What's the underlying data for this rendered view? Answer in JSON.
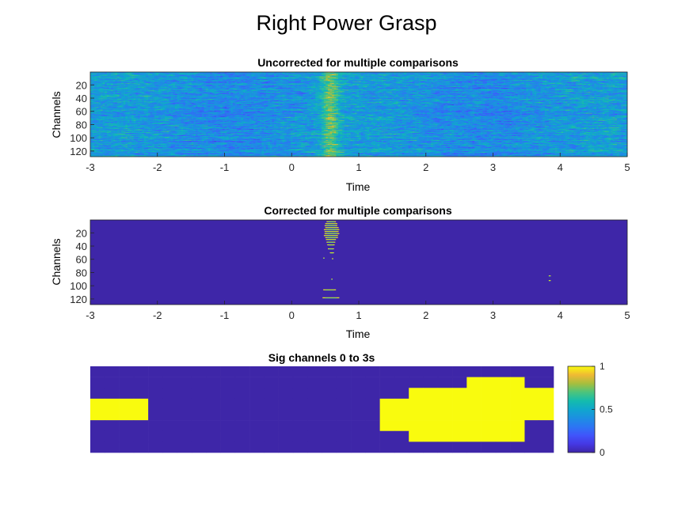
{
  "figure": {
    "title": "Right Power Grasp"
  },
  "colors": {
    "low": "#3e26a8",
    "high": "#f9fb0e"
  },
  "chart_data": [
    {
      "type": "heatmap",
      "title": "Uncorrected for multiple comparisons",
      "xlabel": "Time",
      "ylabel": "Channels",
      "xlim": [
        -3,
        5
      ],
      "ylim": [
        1,
        128
      ],
      "xticks": [
        "-3",
        "-2",
        "-1",
        "0",
        "1",
        "2",
        "3",
        "4",
        "5"
      ],
      "yticks": [
        "20",
        "40",
        "60",
        "80",
        "100",
        "120"
      ],
      "colormap": "parula",
      "description_values": "continuous values 0-1, noisy; elevated band around t=0.5-0.7 s across channels"
    },
    {
      "type": "heatmap",
      "title": "Corrected for multiple comparisons",
      "xlabel": "Time",
      "ylabel": "Channels",
      "xlim": [
        -3,
        5
      ],
      "ylim": [
        1,
        128
      ],
      "xticks": [
        "-3",
        "-2",
        "-1",
        "0",
        "1",
        "2",
        "3",
        "4",
        "5"
      ],
      "yticks": [
        "20",
        "40",
        "60",
        "80",
        "100",
        "120"
      ],
      "colormap": "parula",
      "significant_segments": [
        {
          "channel": 3,
          "t0": 0.52,
          "t1": 0.66
        },
        {
          "channel": 6,
          "t0": 0.5,
          "t1": 0.68
        },
        {
          "channel": 9,
          "t0": 0.49,
          "t1": 0.68
        },
        {
          "channel": 12,
          "t0": 0.5,
          "t1": 0.7
        },
        {
          "channel": 15,
          "t0": 0.48,
          "t1": 0.71
        },
        {
          "channel": 18,
          "t0": 0.49,
          "t1": 0.7
        },
        {
          "channel": 21,
          "t0": 0.49,
          "t1": 0.71
        },
        {
          "channel": 24,
          "t0": 0.48,
          "t1": 0.69
        },
        {
          "channel": 27,
          "t0": 0.5,
          "t1": 0.69
        },
        {
          "channel": 30,
          "t0": 0.51,
          "t1": 0.66
        },
        {
          "channel": 34,
          "t0": 0.52,
          "t1": 0.65
        },
        {
          "channel": 38,
          "t0": 0.53,
          "t1": 0.64
        },
        {
          "channel": 44,
          "t0": 0.54,
          "t1": 0.63
        },
        {
          "channel": 50,
          "t0": 0.57,
          "t1": 0.63
        },
        {
          "channel": 58,
          "t0": 0.47,
          "t1": 0.49
        },
        {
          "channel": 59,
          "t0": 0.6,
          "t1": 0.62
        },
        {
          "channel": 85,
          "t0": 3.83,
          "t1": 3.86
        },
        {
          "channel": 92,
          "t0": 3.83,
          "t1": 3.86
        },
        {
          "channel": 90,
          "t0": 0.59,
          "t1": 0.61
        },
        {
          "channel": 106,
          "t0": 0.47,
          "t1": 0.66
        },
        {
          "channel": 118,
          "t0": 0.46,
          "t1": 0.71
        }
      ]
    },
    {
      "type": "heatmap",
      "title": "Sig channels 0 to 3s",
      "colormap": "parula",
      "clim": [
        0,
        1
      ],
      "colorbar_ticks": [
        "0",
        "0.5",
        "1"
      ],
      "rows": 8,
      "cols": 32,
      "matrix": [
        [
          0,
          0,
          0,
          0,
          0,
          0,
          0,
          0,
          0,
          0,
          0,
          0,
          0,
          0,
          0,
          0,
          0,
          0,
          0,
          0,
          0,
          0,
          0,
          0,
          0,
          0,
          0,
          0,
          0,
          0,
          0,
          0
        ],
        [
          0,
          0,
          0,
          0,
          0,
          0,
          0,
          0,
          0,
          0,
          0,
          0,
          0,
          0,
          0,
          0,
          0,
          0,
          0,
          0,
          0,
          0,
          0,
          0,
          0,
          0,
          1,
          1,
          1,
          1,
          0,
          0
        ],
        [
          0,
          0,
          0,
          0,
          0,
          0,
          0,
          0,
          0,
          0,
          0,
          0,
          0,
          0,
          0,
          0,
          0,
          0,
          0,
          0,
          0,
          0,
          1,
          1,
          1,
          1,
          1,
          1,
          1,
          1,
          1,
          1
        ],
        [
          1,
          1,
          1,
          1,
          0,
          0,
          0,
          0,
          0,
          0,
          0,
          0,
          0,
          0,
          0,
          0,
          0,
          0,
          0,
          0,
          1,
          1,
          1,
          1,
          1,
          1,
          1,
          1,
          1,
          1,
          1,
          1
        ],
        [
          1,
          1,
          1,
          1,
          0,
          0,
          0,
          0,
          0,
          0,
          0,
          0,
          0,
          0,
          0,
          0,
          0,
          0,
          0,
          0,
          1,
          1,
          1,
          1,
          1,
          1,
          1,
          1,
          1,
          1,
          1,
          1
        ],
        [
          0,
          0,
          0,
          0,
          0,
          0,
          0,
          0,
          0,
          0,
          0,
          0,
          0,
          0,
          0,
          0,
          0,
          0,
          0,
          0,
          1,
          1,
          1,
          1,
          1,
          1,
          1,
          1,
          1,
          1,
          0,
          0
        ],
        [
          0,
          0,
          0,
          0,
          0,
          0,
          0,
          0,
          0,
          0,
          0,
          0,
          0,
          0,
          0,
          0,
          0,
          0,
          0,
          0,
          0,
          0,
          1,
          1,
          1,
          1,
          1,
          1,
          1,
          1,
          0,
          0
        ],
        [
          0,
          0,
          0,
          0,
          0,
          0,
          0,
          0,
          0,
          0,
          0,
          0,
          0,
          0,
          0,
          0,
          0,
          0,
          0,
          0,
          0,
          0,
          0,
          0,
          0,
          0,
          0,
          0,
          0,
          0,
          0,
          0
        ]
      ]
    }
  ]
}
